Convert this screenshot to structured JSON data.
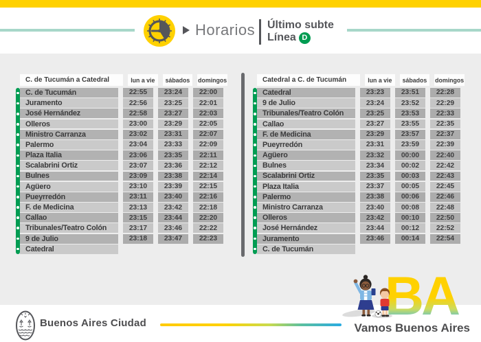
{
  "header": {
    "title": "Horarios",
    "subtitle": "Último subte",
    "line_label": "Línea",
    "line_badge": "D"
  },
  "tables": [
    {
      "direction": "C. de Tucumán a Catedral",
      "columns": [
        "lun a vie",
        "sábados",
        "domingos"
      ],
      "rows": [
        {
          "station": "C. de Tucumán",
          "times": [
            "22:55",
            "23:24",
            "22:00"
          ]
        },
        {
          "station": "Juramento",
          "times": [
            "22:56",
            "23:25",
            "22:01"
          ]
        },
        {
          "station": "José Hernández",
          "times": [
            "22:58",
            "23:27",
            "22:03"
          ]
        },
        {
          "station": "Olleros",
          "times": [
            "23:00",
            "23:29",
            "22:05"
          ]
        },
        {
          "station": "Ministro Carranza",
          "times": [
            "23:02",
            "23:31",
            "22:07"
          ]
        },
        {
          "station": "Palermo",
          "times": [
            "23:04",
            "23:33",
            "22:09"
          ]
        },
        {
          "station": "Plaza Italia",
          "times": [
            "23:06",
            "23:35",
            "22:11"
          ]
        },
        {
          "station": "Scalabrini Ortiz",
          "times": [
            "23:07",
            "23:36",
            "22:12"
          ]
        },
        {
          "station": "Bulnes",
          "times": [
            "23:09",
            "23:38",
            "22:14"
          ]
        },
        {
          "station": "Agüero",
          "times": [
            "23:10",
            "23:39",
            "22:15"
          ]
        },
        {
          "station": "Pueyrredón",
          "times": [
            "23:11",
            "23:40",
            "22:16"
          ]
        },
        {
          "station": "F. de Medicina",
          "times": [
            "23:13",
            "23:42",
            "22:18"
          ]
        },
        {
          "station": "Callao",
          "times": [
            "23:15",
            "23:44",
            "22:20"
          ]
        },
        {
          "station": "Tribunales/Teatro Colón",
          "times": [
            "23:17",
            "23:46",
            "22:22"
          ]
        },
        {
          "station": "9 de Julio",
          "times": [
            "23:18",
            "23:47",
            "22:23"
          ]
        },
        {
          "station": "Catedral",
          "times": []
        }
      ]
    },
    {
      "direction": "Catedral a C. de Tucumán",
      "columns": [
        "lun a vie",
        "sábados",
        "domingos"
      ],
      "rows": [
        {
          "station": "Catedral",
          "times": [
            "23:23",
            "23:51",
            "22:28"
          ]
        },
        {
          "station": "9 de Julio",
          "times": [
            "23:24",
            "23:52",
            "22:29"
          ]
        },
        {
          "station": "Tribunales/Teatro Colón",
          "times": [
            "23:25",
            "23:53",
            "22:33"
          ]
        },
        {
          "station": "Callao",
          "times": [
            "23:27",
            "23:55",
            "22:35"
          ]
        },
        {
          "station": "F. de Medicina",
          "times": [
            "23:29",
            "23:57",
            "22:37"
          ]
        },
        {
          "station": "Pueyrredón",
          "times": [
            "23:31",
            "23:59",
            "22:39"
          ]
        },
        {
          "station": "Agüero",
          "times": [
            "23:32",
            "00:00",
            "22:40"
          ]
        },
        {
          "station": "Bulnes",
          "times": [
            "23:34",
            "00:02",
            "22:42"
          ]
        },
        {
          "station": "Scalabrini Ortiz",
          "times": [
            "23:35",
            "00:03",
            "22:43"
          ]
        },
        {
          "station": "Plaza Italia",
          "times": [
            "23:37",
            "00:05",
            "22:45"
          ]
        },
        {
          "station": "Palermo",
          "times": [
            "23:38",
            "00:06",
            "22:46"
          ]
        },
        {
          "station": "Ministro Carranza",
          "times": [
            "23:40",
            "00:08",
            "22:48"
          ]
        },
        {
          "station": "Olleros",
          "times": [
            "23:42",
            "00:10",
            "22:50"
          ]
        },
        {
          "station": "José Hernández",
          "times": [
            "23:44",
            "00:12",
            "22:52"
          ]
        },
        {
          "station": "Juramento",
          "times": [
            "23:46",
            "00:14",
            "22:54"
          ]
        },
        {
          "station": "C. de Tucumán",
          "times": []
        }
      ]
    }
  ],
  "footer": {
    "brand": "Buenos Aires Ciudad",
    "slogan": "Vamos Buenos Aires",
    "monogram": "BA"
  },
  "colors": {
    "accent_yellow": "#FFD100",
    "accent_teal": "#A7D7C9",
    "line_d_green": "#009C52",
    "gradient_blue": "#29ABE2"
  }
}
